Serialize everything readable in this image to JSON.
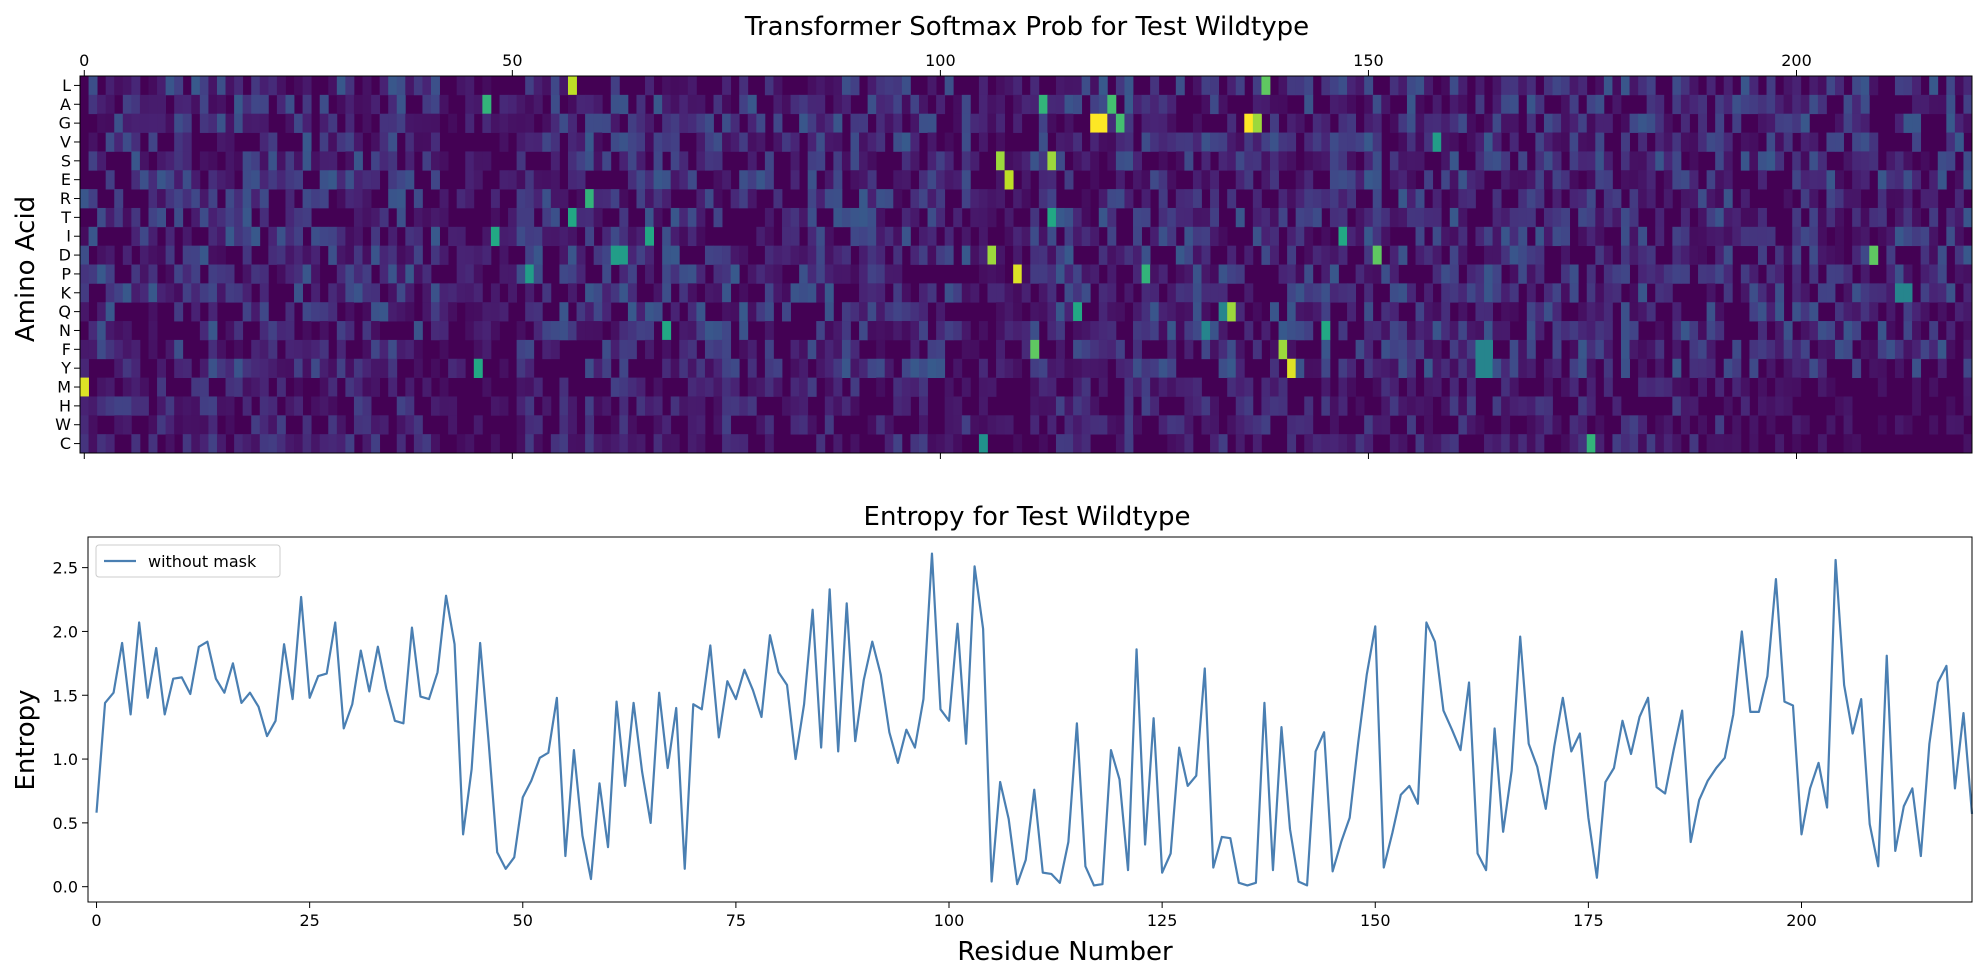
{
  "chart_data": [
    {
      "type": "heatmap",
      "title": "Transformer Softmax Prob for Test Wildtype",
      "ylabel": "Amino Acid",
      "xlabel": "",
      "x_range": [
        0,
        220
      ],
      "x_ticks": [
        0,
        50,
        100,
        150,
        200
      ],
      "x_tick_position": "top",
      "rows": [
        "L",
        "A",
        "G",
        "V",
        "S",
        "E",
        "R",
        "T",
        "I",
        "D",
        "P",
        "K",
        "Q",
        "N",
        "F",
        "Y",
        "M",
        "H",
        "W",
        "C"
      ],
      "colormap": [
        "#440154",
        "#482475",
        "#414487",
        "#355f8d",
        "#2a788e",
        "#21918c",
        "#22a884",
        "#44bf70",
        "#7ad151",
        "#bddf26",
        "#fde725"
      ],
      "background_color": "#440154",
      "high_cells": [
        {
          "x": 57,
          "row": "L",
          "value": 0.9
        },
        {
          "x": 138,
          "row": "L",
          "value": 0.75
        },
        {
          "x": 47,
          "row": "A",
          "value": 0.65
        },
        {
          "x": 112,
          "row": "A",
          "value": 0.65
        },
        {
          "x": 120,
          "row": "A",
          "value": 0.7
        },
        {
          "x": 118,
          "row": "G",
          "value": 1.0
        },
        {
          "x": 119,
          "row": "G",
          "value": 1.0
        },
        {
          "x": 136,
          "row": "G",
          "value": 1.0
        },
        {
          "x": 137,
          "row": "G",
          "value": 0.85
        },
        {
          "x": 121,
          "row": "G",
          "value": 0.7
        },
        {
          "x": 158,
          "row": "V",
          "value": 0.55
        },
        {
          "x": 107,
          "row": "S",
          "value": 0.85
        },
        {
          "x": 113,
          "row": "S",
          "value": 0.85
        },
        {
          "x": 108,
          "row": "E",
          "value": 0.9
        },
        {
          "x": 59,
          "row": "R",
          "value": 0.65
        },
        {
          "x": 57,
          "row": "T",
          "value": 0.6
        },
        {
          "x": 113,
          "row": "T",
          "value": 0.6
        },
        {
          "x": 48,
          "row": "I",
          "value": 0.6
        },
        {
          "x": 66,
          "row": "I",
          "value": 0.6
        },
        {
          "x": 147,
          "row": "I",
          "value": 0.6
        },
        {
          "x": 62,
          "row": "D",
          "value": 0.55
        },
        {
          "x": 63,
          "row": "D",
          "value": 0.55
        },
        {
          "x": 106,
          "row": "D",
          "value": 0.85
        },
        {
          "x": 151,
          "row": "D",
          "value": 0.75
        },
        {
          "x": 209,
          "row": "D",
          "value": 0.75
        },
        {
          "x": 109,
          "row": "P",
          "value": 0.95
        },
        {
          "x": 124,
          "row": "P",
          "value": 0.65
        },
        {
          "x": 52,
          "row": "P",
          "value": 0.55
        },
        {
          "x": 212,
          "row": "K",
          "value": 0.45
        },
        {
          "x": 213,
          "row": "K",
          "value": 0.45
        },
        {
          "x": 133,
          "row": "Q",
          "value": 0.45
        },
        {
          "x": 134,
          "row": "Q",
          "value": 0.85
        },
        {
          "x": 116,
          "row": "Q",
          "value": 0.6
        },
        {
          "x": 68,
          "row": "N",
          "value": 0.6
        },
        {
          "x": 145,
          "row": "N",
          "value": 0.6
        },
        {
          "x": 131,
          "row": "N",
          "value": 0.45
        },
        {
          "x": 140,
          "row": "F",
          "value": 0.85
        },
        {
          "x": 111,
          "row": "F",
          "value": 0.75
        },
        {
          "x": 163,
          "row": "F",
          "value": 0.45
        },
        {
          "x": 164,
          "row": "F",
          "value": 0.45
        },
        {
          "x": 141,
          "row": "Y",
          "value": 0.95
        },
        {
          "x": 163,
          "row": "Y",
          "value": 0.45
        },
        {
          "x": 164,
          "row": "Y",
          "value": 0.45
        },
        {
          "x": 46,
          "row": "Y",
          "value": 0.6
        },
        {
          "x": 0,
          "row": "M",
          "value": 0.95
        },
        {
          "x": 176,
          "row": "C",
          "value": 0.65
        },
        {
          "x": 105,
          "row": "C",
          "value": 0.5
        }
      ]
    },
    {
      "type": "line",
      "title": "Entropy for Test Wildtype",
      "xlabel": "Residue Number",
      "ylabel": "Entropy",
      "x_range": [
        -1,
        220
      ],
      "ylim": [
        -0.12,
        2.74
      ],
      "x_ticks": [
        0,
        25,
        50,
        75,
        100,
        125,
        150,
        175,
        200
      ],
      "y_ticks": [
        0.0,
        0.5,
        1.0,
        1.5,
        2.0,
        2.5
      ],
      "y_tick_labels": [
        "0.0",
        "0.5",
        "1.0",
        "1.5",
        "2.0",
        "2.5"
      ],
      "legend_position": "top-left",
      "grid": false,
      "series": [
        {
          "name": "without mask",
          "color": "#4a7fb2",
          "x_start": 0,
          "values": [
            0.58,
            1.44,
            1.52,
            1.91,
            1.35,
            2.07,
            1.48,
            1.87,
            1.35,
            1.63,
            1.64,
            1.51,
            1.88,
            1.92,
            1.63,
            1.52,
            1.75,
            1.44,
            1.52,
            1.41,
            1.18,
            1.3,
            1.9,
            1.47,
            2.27,
            1.48,
            1.65,
            1.67,
            2.07,
            1.24,
            1.43,
            1.85,
            1.53,
            1.88,
            1.55,
            1.3,
            1.28,
            2.03,
            1.49,
            1.47,
            1.68,
            2.28,
            1.9,
            0.41,
            0.92,
            1.91,
            1.13,
            0.27,
            0.14,
            0.23,
            0.7,
            0.83,
            1.01,
            1.05,
            1.48,
            0.24,
            1.07,
            0.4,
            0.06,
            0.81,
            0.31,
            1.45,
            0.79,
            1.44,
            0.9,
            0.5,
            1.52,
            0.93,
            1.4,
            0.14,
            1.43,
            1.39,
            1.89,
            1.17,
            1.61,
            1.47,
            1.7,
            1.54,
            1.33,
            1.97,
            1.68,
            1.58,
            1.0,
            1.43,
            2.17,
            1.09,
            2.33,
            1.06,
            2.22,
            1.14,
            1.62,
            1.92,
            1.66,
            1.21,
            0.97,
            1.23,
            1.09,
            1.47,
            2.61,
            1.39,
            1.3,
            2.06,
            1.12,
            2.51,
            2.02,
            0.04,
            0.82,
            0.53,
            0.02,
            0.21,
            0.76,
            0.11,
            0.1,
            0.03,
            0.35,
            1.28,
            0.16,
            0.01,
            0.02,
            1.07,
            0.84,
            0.13,
            1.86,
            0.33,
            1.32,
            0.11,
            0.26,
            1.09,
            0.79,
            0.87,
            1.71,
            0.15,
            0.39,
            0.38,
            0.03,
            0.01,
            0.03,
            1.44,
            0.13,
            1.25,
            0.45,
            0.04,
            0.01,
            1.06,
            1.21,
            0.12,
            0.35,
            0.54,
            1.13,
            1.66,
            2.04,
            0.15,
            0.42,
            0.72,
            0.79,
            0.65,
            2.07,
            1.92,
            1.38,
            1.23,
            1.07,
            1.6,
            0.26,
            0.13,
            1.24,
            0.43,
            0.91,
            1.96,
            1.12,
            0.94,
            0.61,
            1.1,
            1.48,
            1.06,
            1.2,
            0.54,
            0.07,
            0.82,
            0.93,
            1.3,
            1.04,
            1.33,
            1.48,
            0.78,
            0.73,
            1.07,
            1.38,
            0.35,
            0.68,
            0.83,
            0.93,
            1.01,
            1.35,
            2.0,
            1.37,
            1.37,
            1.65,
            2.41,
            1.45,
            1.42,
            0.41,
            0.77,
            0.97,
            0.62,
            2.56,
            1.58,
            1.2,
            1.47,
            0.49,
            0.16,
            1.81,
            0.28,
            0.63,
            0.77,
            0.24,
            1.12,
            1.6,
            1.73,
            0.77,
            1.36,
            0.57
          ]
        }
      ]
    }
  ]
}
